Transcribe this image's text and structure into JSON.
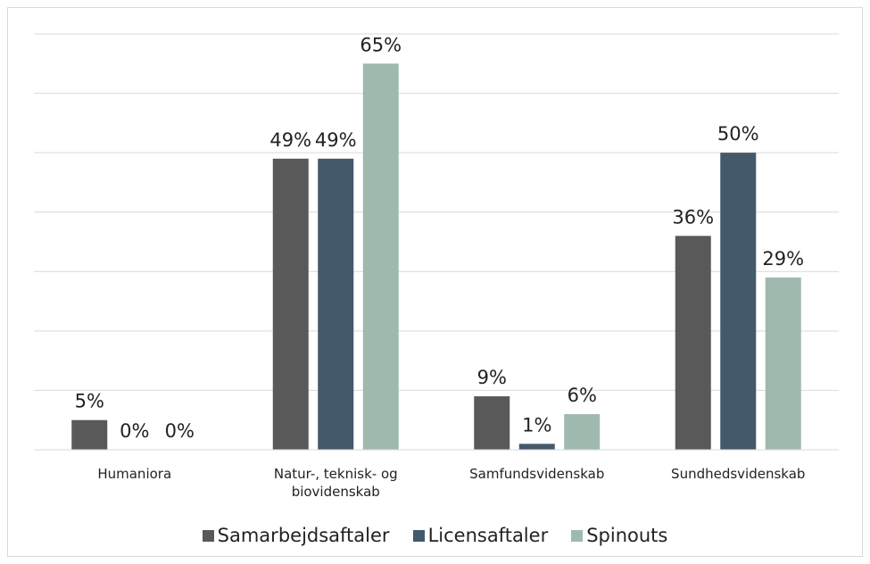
{
  "chart_data": {
    "type": "bar",
    "categories": [
      "Humaniora",
      "Natur-, teknisk- og biovidenskab",
      "Samfundsvidenskab",
      "Sundhedsvidenskab"
    ],
    "series": [
      {
        "name": "Samarbejdsaftaler",
        "color": "#595959",
        "values": [
          5,
          49,
          9,
          36
        ],
        "value_labels": [
          "5%",
          "49%",
          "9%",
          "36%"
        ]
      },
      {
        "name": "Licensaftaler",
        "color": "#44596a",
        "values": [
          0,
          49,
          1,
          50
        ],
        "value_labels": [
          "0%",
          "49%",
          "1%",
          "50%"
        ]
      },
      {
        "name": "Spinouts",
        "color": "#9fb9af",
        "values": [
          0,
          65,
          6,
          29
        ],
        "value_labels": [
          "0%",
          "65%",
          "6%",
          "29%"
        ]
      }
    ],
    "ylim": [
      0,
      70
    ],
    "yticks": [
      0,
      10,
      20,
      30,
      40,
      50,
      60,
      70
    ],
    "grid": true,
    "legend": "bottom"
  }
}
